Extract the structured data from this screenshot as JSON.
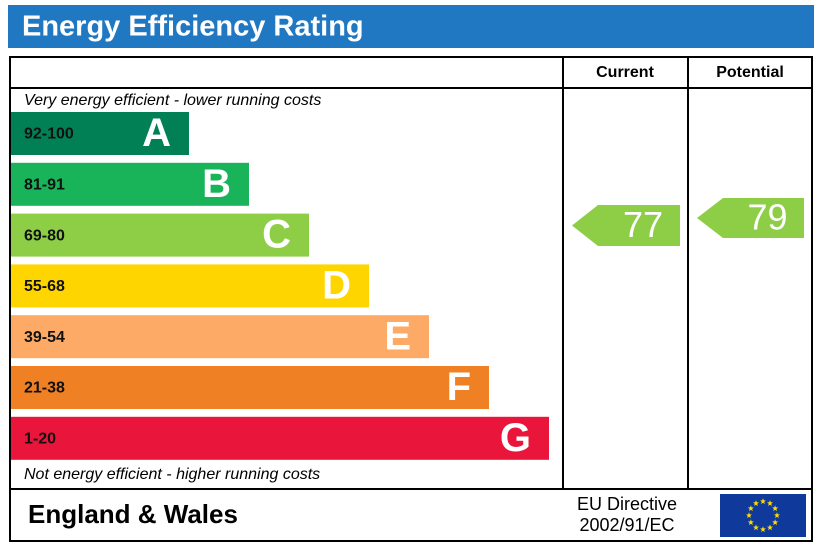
{
  "header": {
    "title": "Energy Efficiency Rating"
  },
  "columns": {
    "current": "Current",
    "potential": "Potential"
  },
  "top_note": "Very energy efficient - lower running costs",
  "bottom_note": "Not energy efficient - higher running costs",
  "bands": [
    {
      "range": "92-100",
      "letter": "A",
      "color": "#008054"
    },
    {
      "range": "81-91",
      "letter": "B",
      "color": "#19b459"
    },
    {
      "range": "69-80",
      "letter": "C",
      "color": "#8dce46"
    },
    {
      "range": "55-68",
      "letter": "D",
      "color": "#ffd500"
    },
    {
      "range": "39-54",
      "letter": "E",
      "color": "#fcaa65"
    },
    {
      "range": "21-38",
      "letter": "F",
      "color": "#ef8023"
    },
    {
      "range": "1-20",
      "letter": "G",
      "color": "#e9153b"
    }
  ],
  "current": {
    "value": 77,
    "color": "#8dce46"
  },
  "potential": {
    "value": 79,
    "color": "#8dce46"
  },
  "footer": {
    "region": "England & Wales",
    "directive": [
      "EU Directive",
      "2002/91/EC"
    ]
  }
}
